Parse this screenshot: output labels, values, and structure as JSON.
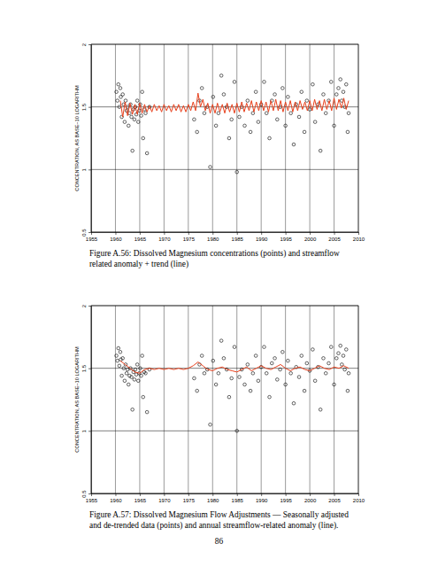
{
  "chart_data": [
    {
      "type": "scatter",
      "title": "Figure A.56: Dissolved Magnesium concentrations (points) and streamflow related anomaly + trend (line)",
      "y_label": "CONCENTRATION, AS BASE–10 LOGARITHM",
      "xlim": [
        1955,
        2010
      ],
      "xticks": [
        1955,
        1960,
        1965,
        1970,
        1975,
        1980,
        1985,
        1990,
        1995,
        2000,
        2005,
        2010
      ],
      "ylim": [
        0.5,
        2
      ],
      "yticks": [
        0.5,
        1,
        1.5,
        2
      ],
      "grid": true,
      "series": [
        {
          "type": "scatter",
          "marker": "circle",
          "color": "#000000",
          "x": [
            1960.2,
            1960.4,
            1960.6,
            1960.8,
            1961.0,
            1961.1,
            1961.3,
            1961.5,
            1961.7,
            1961.9,
            1962.1,
            1962.3,
            1962.5,
            1962.7,
            1962.9,
            1963.1,
            1963.3,
            1963.5,
            1963.7,
            1963.9,
            1964.1,
            1964.3,
            1964.5,
            1964.7,
            1964.9,
            1965.1,
            1965.3,
            1965.5,
            1965.7,
            1965.9,
            1966.2,
            1966.5,
            1967,
            1976.2,
            1976.8,
            1977.3,
            1977.8,
            1978.3,
            1978.9,
            1979.5,
            1980.1,
            1980.7,
            1981.2,
            1981.8,
            1982.3,
            1982.9,
            1983.4,
            1983.9,
            1984.5,
            1985,
            1985.5,
            1986,
            1986.6,
            1987.2,
            1987.8,
            1988.3,
            1988.9,
            1989.4,
            1990,
            1990.6,
            1991.1,
            1991.7,
            1992.2,
            1992.8,
            1993.3,
            1993.9,
            1994.4,
            1995,
            1995.5,
            1996.1,
            1996.7,
            1997.2,
            1997.8,
            1998.3,
            1998.9,
            1999.4,
            2000,
            2000.6,
            2001.1,
            2001.7,
            2002.2,
            2002.8,
            2003.3,
            2003.9,
            2004.4,
            2005,
            2005.5,
            2005.9,
            2006.3,
            2006.6,
            2006.9,
            2007.2,
            2007.5,
            2007.8,
            2008
          ],
          "values": [
            1.62,
            1.55,
            1.68,
            1.5,
            1.65,
            1.58,
            1.42,
            1.6,
            1.52,
            1.38,
            1.55,
            1.47,
            1.5,
            1.35,
            1.45,
            1.52,
            1.42,
            1.15,
            1.48,
            1.4,
            1.5,
            1.44,
            1.55,
            1.38,
            1.47,
            1.52,
            1.43,
            1.62,
            1.25,
            1.48,
            1.45,
            1.13,
            1.5,
            1.4,
            1.3,
            1.55,
            1.65,
            1.45,
            1.5,
            1.02,
            1.58,
            1.35,
            1.45,
            1.75,
            1.6,
            1.5,
            1.25,
            1.4,
            1.7,
            0.98,
            1.42,
            1.5,
            1.35,
            1.55,
            1.3,
            1.45,
            1.62,
            1.38,
            1.52,
            1.7,
            1.45,
            1.25,
            1.55,
            1.6,
            1.4,
            1.5,
            1.65,
            1.35,
            1.58,
            1.45,
            1.2,
            1.52,
            1.42,
            1.62,
            1.3,
            1.55,
            1.48,
            1.68,
            1.38,
            1.52,
            1.15,
            1.6,
            1.45,
            1.55,
            1.7,
            1.35,
            1.6,
            1.65,
            1.72,
            1.55,
            1.62,
            1.5,
            1.68,
            1.3,
            1.45
          ]
        },
        {
          "type": "line",
          "line_style": "solid",
          "color": "#e8401c",
          "x": [
            1961,
            1961.5,
            1962,
            1962.5,
            1963,
            1963.5,
            1964,
            1964.5,
            1965,
            1965.5,
            1966,
            1966.5,
            1967,
            1967.5,
            1968,
            1968.5,
            1969,
            1969.5,
            1970,
            1970.5,
            1971,
            1971.5,
            1972,
            1972.5,
            1973,
            1973.5,
            1974,
            1974.5,
            1975,
            1975.5,
            1976,
            1976.5,
            1977,
            1977.5,
            1978,
            1978.5,
            1979,
            1979.5,
            1980,
            1980.5,
            1981,
            1981.5,
            1982,
            1982.5,
            1983,
            1983.5,
            1984,
            1984.5,
            1985,
            1985.5,
            1986,
            1986.5,
            1987,
            1987.5,
            1988,
            1988.5,
            1989,
            1989.5,
            1990,
            1990.5,
            1991,
            1991.5,
            1992,
            1992.5,
            1993,
            1993.5,
            1994,
            1994.5,
            1995,
            1995.5,
            1996,
            1996.5,
            1997,
            1997.5,
            1998,
            1998.5,
            1999,
            1999.5,
            2000,
            2000.5,
            2001,
            2001.5,
            2002,
            2002.5,
            2003,
            2003.5,
            2004,
            2004.5,
            2005,
            2005.5,
            2006,
            2006.5,
            2007,
            2007.5,
            2008
          ],
          "values": [
            1.55,
            1.42,
            1.54,
            1.43,
            1.53,
            1.44,
            1.52,
            1.44,
            1.53,
            1.45,
            1.52,
            1.46,
            1.51,
            1.46,
            1.52,
            1.47,
            1.51,
            1.46,
            1.52,
            1.47,
            1.51,
            1.46,
            1.52,
            1.47,
            1.52,
            1.46,
            1.51,
            1.46,
            1.52,
            1.47,
            1.54,
            1.47,
            1.61,
            1.5,
            1.56,
            1.47,
            1.53,
            1.45,
            1.52,
            1.45,
            1.53,
            1.46,
            1.52,
            1.45,
            1.53,
            1.46,
            1.52,
            1.45,
            1.53,
            1.46,
            1.54,
            1.46,
            1.53,
            1.47,
            1.55,
            1.46,
            1.54,
            1.47,
            1.55,
            1.47,
            1.54,
            1.46,
            1.55,
            1.47,
            1.56,
            1.47,
            1.55,
            1.46,
            1.54,
            1.47,
            1.55,
            1.46,
            1.54,
            1.47,
            1.55,
            1.48,
            1.54,
            1.47,
            1.55,
            1.47,
            1.56,
            1.48,
            1.55,
            1.47,
            1.56,
            1.48,
            1.55,
            1.47,
            1.57,
            1.48,
            1.56,
            1.49,
            1.57,
            1.48,
            1.55
          ]
        }
      ]
    },
    {
      "type": "scatter",
      "title": "Figure A.57: Dissolved Magnesium Flow Adjustments — Seasonally adjusted and de-trended data (points) and annual streamflow-related anomaly (line).",
      "y_label": "CONCENTRATION, AS BASE–10 LOGARITHM",
      "xlim": [
        1955,
        2010
      ],
      "xticks": [
        1955,
        1960,
        1965,
        1970,
        1975,
        1980,
        1985,
        1990,
        1995,
        2000,
        2005,
        2010
      ],
      "ylim": [
        0.5,
        2
      ],
      "yticks": [
        0.5,
        1,
        1.5,
        2
      ],
      "grid": true,
      "series": [
        {
          "type": "scatter",
          "marker": "circle",
          "color": "#000000",
          "x": [
            1960.2,
            1960.4,
            1960.6,
            1960.8,
            1961.0,
            1961.1,
            1961.3,
            1961.5,
            1961.7,
            1961.9,
            1962.1,
            1962.3,
            1962.5,
            1962.7,
            1962.9,
            1963.1,
            1963.3,
            1963.5,
            1963.7,
            1963.9,
            1964.1,
            1964.3,
            1964.5,
            1964.7,
            1964.9,
            1965.1,
            1965.3,
            1965.5,
            1965.7,
            1965.9,
            1966.2,
            1966.5,
            1967,
            1976.2,
            1976.8,
            1977.3,
            1977.8,
            1978.3,
            1978.9,
            1979.5,
            1980.1,
            1980.7,
            1981.2,
            1981.8,
            1982.3,
            1982.9,
            1983.4,
            1983.9,
            1984.5,
            1985,
            1985.5,
            1986,
            1986.6,
            1987.2,
            1987.8,
            1988.3,
            1988.9,
            1989.4,
            1990,
            1990.6,
            1991.1,
            1991.7,
            1992.2,
            1992.8,
            1993.3,
            1993.9,
            1994.4,
            1995,
            1995.5,
            1996.1,
            1996.7,
            1997.2,
            1997.8,
            1998.3,
            1998.9,
            1999.4,
            2000,
            2000.6,
            2001.1,
            2001.7,
            2002.2,
            2002.8,
            2003.3,
            2003.9,
            2004.4,
            2005,
            2005.5,
            2005.9,
            2006.3,
            2006.6,
            2006.9,
            2007.2,
            2007.5,
            2007.8,
            2008
          ],
          "values": [
            1.6,
            1.56,
            1.66,
            1.52,
            1.63,
            1.57,
            1.44,
            1.58,
            1.5,
            1.4,
            1.53,
            1.46,
            1.49,
            1.37,
            1.44,
            1.5,
            1.43,
            1.17,
            1.47,
            1.41,
            1.49,
            1.45,
            1.53,
            1.4,
            1.46,
            1.5,
            1.44,
            1.6,
            1.27,
            1.47,
            1.46,
            1.15,
            1.49,
            1.42,
            1.32,
            1.53,
            1.6,
            1.46,
            1.49,
            1.05,
            1.56,
            1.37,
            1.46,
            1.72,
            1.58,
            1.49,
            1.27,
            1.42,
            1.67,
            1.0,
            1.43,
            1.49,
            1.37,
            1.53,
            1.32,
            1.46,
            1.6,
            1.4,
            1.51,
            1.67,
            1.46,
            1.27,
            1.54,
            1.58,
            1.41,
            1.49,
            1.63,
            1.37,
            1.56,
            1.46,
            1.22,
            1.51,
            1.43,
            1.6,
            1.32,
            1.54,
            1.48,
            1.65,
            1.4,
            1.51,
            1.17,
            1.58,
            1.46,
            1.54,
            1.67,
            1.37,
            1.58,
            1.62,
            1.68,
            1.53,
            1.6,
            1.49,
            1.65,
            1.32,
            1.46
          ]
        },
        {
          "type": "line",
          "line_style": "solid",
          "color": "#e8401c",
          "x": [
            1961,
            1962,
            1963,
            1964,
            1965,
            1966,
            1967,
            1968,
            1969,
            1970,
            1971,
            1972,
            1973,
            1974,
            1975,
            1976,
            1977,
            1978,
            1979,
            1980,
            1981,
            1982,
            1983,
            1984,
            1985,
            1986,
            1987,
            1988,
            1989,
            1990,
            1991,
            1992,
            1993,
            1994,
            1995,
            1996,
            1997,
            1998,
            1999,
            2000,
            2001,
            2002,
            2003,
            2004,
            2005,
            2006,
            2007,
            2008
          ],
          "values": [
            1.56,
            1.53,
            1.5,
            1.47,
            1.46,
            1.49,
            1.5,
            1.49,
            1.5,
            1.49,
            1.5,
            1.49,
            1.5,
            1.49,
            1.5,
            1.52,
            1.55,
            1.52,
            1.49,
            1.48,
            1.5,
            1.51,
            1.49,
            1.48,
            1.47,
            1.49,
            1.51,
            1.48,
            1.5,
            1.52,
            1.5,
            1.49,
            1.51,
            1.53,
            1.5,
            1.48,
            1.5,
            1.51,
            1.49,
            1.48,
            1.5,
            1.52,
            1.5,
            1.49,
            1.51,
            1.5,
            1.52,
            1.5
          ]
        }
      ]
    }
  ],
  "page_number": "86"
}
